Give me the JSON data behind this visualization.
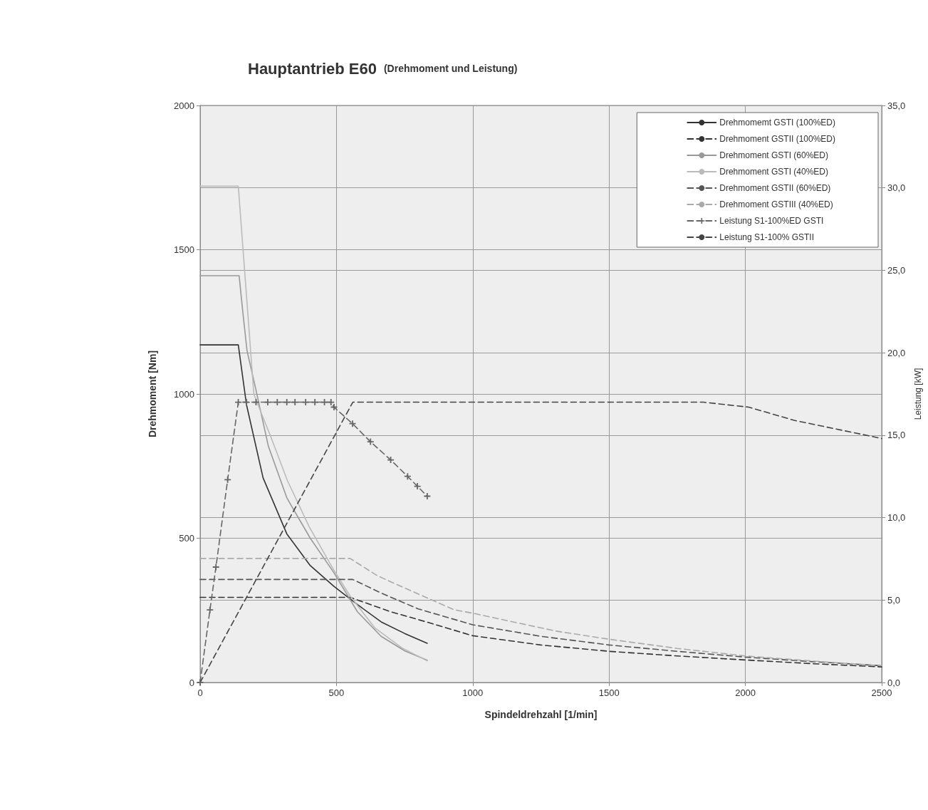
{
  "chart_data": {
    "type": "line",
    "title": "Hauptantrieb E60",
    "subtitle": "(Drehmoment und Leistung)",
    "xlabel": "Spindeldrehzahl [1/min]",
    "ylabel": "Drehmoment [Nm]",
    "y2label": "Leistung [kW]",
    "xlim": [
      0,
      2500
    ],
    "xticks": [
      0,
      500,
      1000,
      1500,
      2000,
      2500
    ],
    "ylim": [
      0,
      2000
    ],
    "yticks": [
      0,
      500,
      1000,
      1500,
      2000
    ],
    "y2lim": [
      0,
      35
    ],
    "y2ticks": [
      {
        "value": 0,
        "label": "0,0"
      },
      {
        "value": 5,
        "label": "5,0"
      },
      {
        "value": 10,
        "label": "10,0"
      },
      {
        "value": 15,
        "label": "15,0"
      },
      {
        "value": 20,
        "label": "20,0"
      },
      {
        "value": 25,
        "label": "25,0"
      },
      {
        "value": 30,
        "label": "30,0"
      },
      {
        "value": 35,
        "label": "35,0"
      }
    ],
    "grid": true,
    "legend": "top right",
    "marker": "none",
    "series": [
      {
        "name": "Drehmomemt GSTI (100%ED)",
        "color": "#333333",
        "line_style": "solid",
        "x": [
          0,
          140,
          170,
          231,
          318,
          404,
          491,
          577,
          664,
          750,
          833
        ],
        "values": [
          1170,
          1170,
          963,
          709,
          515,
          405,
          333,
          270,
          210,
          170,
          136
        ]
      },
      {
        "name": "Drehmoment GSTII (100%ED)",
        "color": "#333333",
        "line_style": "dashed",
        "x": [
          0,
          550,
          700,
          837,
          1000,
          1250,
          1500,
          1750,
          2000,
          2250,
          2500
        ],
        "values": [
          295,
          295,
          245,
          208,
          162,
          130,
          108,
          92,
          78,
          65,
          54
        ]
      },
      {
        "name": "Drehmoment GSTI (60%ED)",
        "color": "#999999",
        "line_style": "solid",
        "x": [
          0,
          143,
          157,
          172,
          201,
          250,
          318,
          404,
          491,
          577,
          664,
          750,
          833
        ],
        "values": [
          1410,
          1410,
          1280,
          1150,
          1030,
          820,
          640,
          500,
          380,
          245,
          160,
          110,
          77
        ]
      },
      {
        "name": "Drehmoment GSTI (40%ED)",
        "color": "#bbbbbb",
        "line_style": "solid",
        "x": [
          0,
          140,
          197,
          230,
          260,
          320,
          400,
          490,
          550,
          640,
          740,
          833
        ],
        "values": [
          1720,
          1720,
          1000,
          920,
          850,
          700,
          540,
          390,
          300,
          190,
          120,
          75
        ]
      },
      {
        "name": "Drehmoment GSTII (60%ED)",
        "color": "#555555",
        "line_style": "dashed",
        "x": [
          0,
          560,
          664,
          800,
          1000,
          1250,
          1500,
          1750,
          2000,
          2250,
          2500
        ],
        "values": [
          357,
          357,
          310,
          255,
          200,
          160,
          130,
          108,
          88,
          72,
          58
        ]
      },
      {
        "name": "Drehmoment GSTIII (40%ED)",
        "color": "#aaaaaa",
        "line_style": "dashed",
        "x": [
          0,
          550,
          650,
          794,
          932,
          1000,
          1306,
          1500,
          1750,
          2000,
          2250,
          2500
        ],
        "values": [
          430,
          430,
          370,
          309,
          252,
          240,
          178,
          150,
          118,
          92,
          74,
          58
        ]
      },
      {
        "name": "Leistung S1-100%ED GSTI",
        "color": "#666666",
        "line_style": "dashed",
        "marker": "cross",
        "axis": "y2",
        "x": [
          0,
          36,
          58,
          101,
          140,
          170,
          205,
          248,
          283,
          318,
          348,
          387,
          421,
          456,
          480,
          491,
          559,
          625,
          699,
          761,
          797,
          833
        ],
        "values": [
          0,
          4.4,
          7.0,
          12.3,
          17.0,
          17.0,
          17.0,
          17.0,
          17.0,
          17.0,
          17.0,
          17.0,
          17.0,
          17.0,
          17.0,
          16.7,
          15.7,
          14.6,
          13.5,
          12.5,
          11.9,
          11.3
        ]
      },
      {
        "name": "Leistung S1-100% GSTII",
        "color": "#444444",
        "line_style": "dashed",
        "axis": "y2",
        "x": [
          0,
          560,
          1000,
          1500,
          1846,
          2012,
          2179,
          2500
        ],
        "values": [
          0,
          17.0,
          17.0,
          17.0,
          17.0,
          16.7,
          15.9,
          14.8
        ]
      }
    ]
  }
}
